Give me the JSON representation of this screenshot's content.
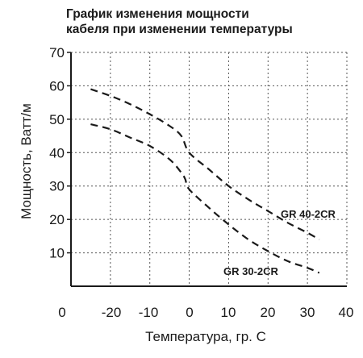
{
  "chart_data": {
    "type": "line",
    "title_line1": "График изменения мощности",
    "title_line2": "кабеля при изменении температуры",
    "xlabel": "Температура, гр. С",
    "ylabel": "Мощность, Ватт/м",
    "xlim": [
      -30,
      40
    ],
    "ylim": [
      0,
      70
    ],
    "x_ticks": [
      "0",
      "-20",
      "-10",
      "0",
      "10",
      "20",
      "30",
      "40"
    ],
    "y_ticks": [
      "10",
      "20",
      "30",
      "40",
      "50",
      "60",
      "70"
    ],
    "grid": true,
    "line_style": "dashed",
    "series": [
      {
        "name": "GR 40-2CR",
        "x": [
          -25,
          -20,
          -15,
          -10,
          -5,
          -2,
          0,
          5,
          10,
          15,
          20,
          25,
          30,
          33
        ],
        "y": [
          59,
          57,
          54.5,
          51.5,
          48,
          45,
          40,
          35,
          30,
          26,
          22.5,
          19,
          16,
          14
        ]
      },
      {
        "name": "GR 30-2CR",
        "x": [
          -25,
          -20,
          -15,
          -10,
          -5,
          -2,
          -1,
          0,
          5,
          10,
          15,
          20,
          25,
          30,
          33
        ],
        "y": [
          48.5,
          47,
          44.5,
          42,
          38,
          34,
          32,
          29,
          23.5,
          18.5,
          14,
          10.5,
          7.5,
          5.5,
          4
        ]
      }
    ]
  }
}
